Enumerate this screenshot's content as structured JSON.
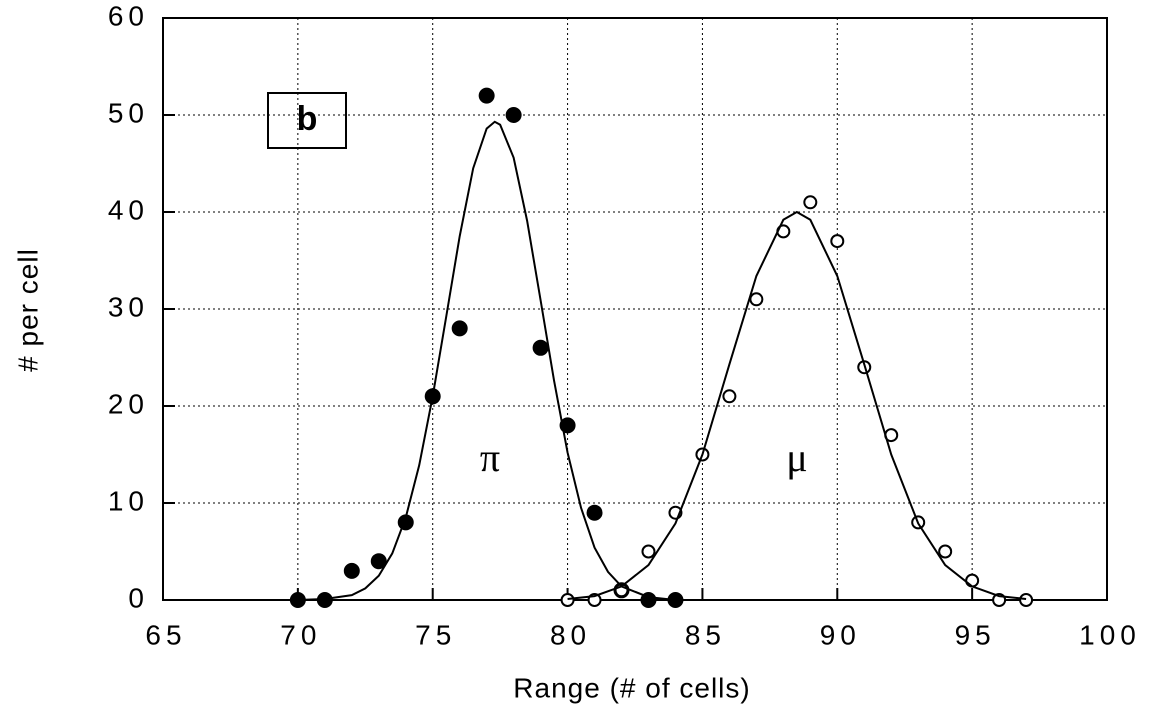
{
  "chart_data": {
    "type": "scatter",
    "xlabel": "Range (# of cells)",
    "ylabel": "# per cell",
    "annotations": [
      "b",
      "π",
      "μ"
    ],
    "xlim": [
      65,
      100
    ],
    "xticks": [
      65,
      70,
      75,
      80,
      85,
      90,
      95,
      100
    ],
    "ylim": [
      0,
      60
    ],
    "yticks": [
      0,
      10,
      20,
      30,
      40,
      50,
      60
    ],
    "grid": true,
    "series": [
      {
        "style": "filled-marker",
        "color": "#000000",
        "x": [
          70,
          71,
          72,
          73,
          74,
          75,
          76,
          77,
          78,
          79,
          80,
          81,
          82,
          83,
          84
        ],
        "values": [
          0,
          0,
          3,
          4,
          8,
          21,
          28,
          52,
          50,
          26,
          18,
          9,
          1,
          0,
          0
        ]
      },
      {
        "style": "open-marker",
        "color": "#000000",
        "x": [
          80,
          81,
          82,
          83,
          84,
          85,
          86,
          87,
          88,
          89,
          90,
          91,
          92,
          93,
          94,
          95,
          96,
          97
        ],
        "values": [
          0,
          0,
          1,
          5,
          9,
          15,
          21,
          31,
          38,
          41,
          37,
          24,
          17,
          8,
          5,
          2,
          0,
          0
        ]
      },
      {
        "style": "line",
        "color": "#000000",
        "x": [
          70,
          71,
          72,
          72.5,
          73,
          73.5,
          74,
          74.5,
          75,
          75.5,
          76,
          76.5,
          77,
          77.3,
          77.5,
          78,
          78.5,
          79,
          79.5,
          80,
          80.5,
          81,
          81.5,
          82,
          83,
          84
        ],
        "values": [
          0,
          0.1,
          0.5,
          1.2,
          2.5,
          4.8,
          8.5,
          13.9,
          21,
          29.2,
          37.5,
          44.5,
          48.6,
          49.3,
          49,
          45.6,
          39.1,
          30.9,
          22.6,
          15.2,
          9.5,
          5.4,
          2.9,
          1.4,
          0.3,
          0
        ]
      },
      {
        "style": "line",
        "color": "#000000",
        "x": [
          80,
          81,
          82,
          83,
          84,
          85,
          86,
          87,
          88,
          88.5,
          89,
          90,
          91,
          92,
          93,
          94,
          95,
          96,
          97
        ],
        "values": [
          0.1,
          0.4,
          1.4,
          3.6,
          7.9,
          15,
          24.3,
          33.4,
          39.2,
          40,
          39.2,
          33.4,
          24.3,
          15,
          7.9,
          3.6,
          1.4,
          0.4,
          0.1
        ]
      }
    ]
  }
}
